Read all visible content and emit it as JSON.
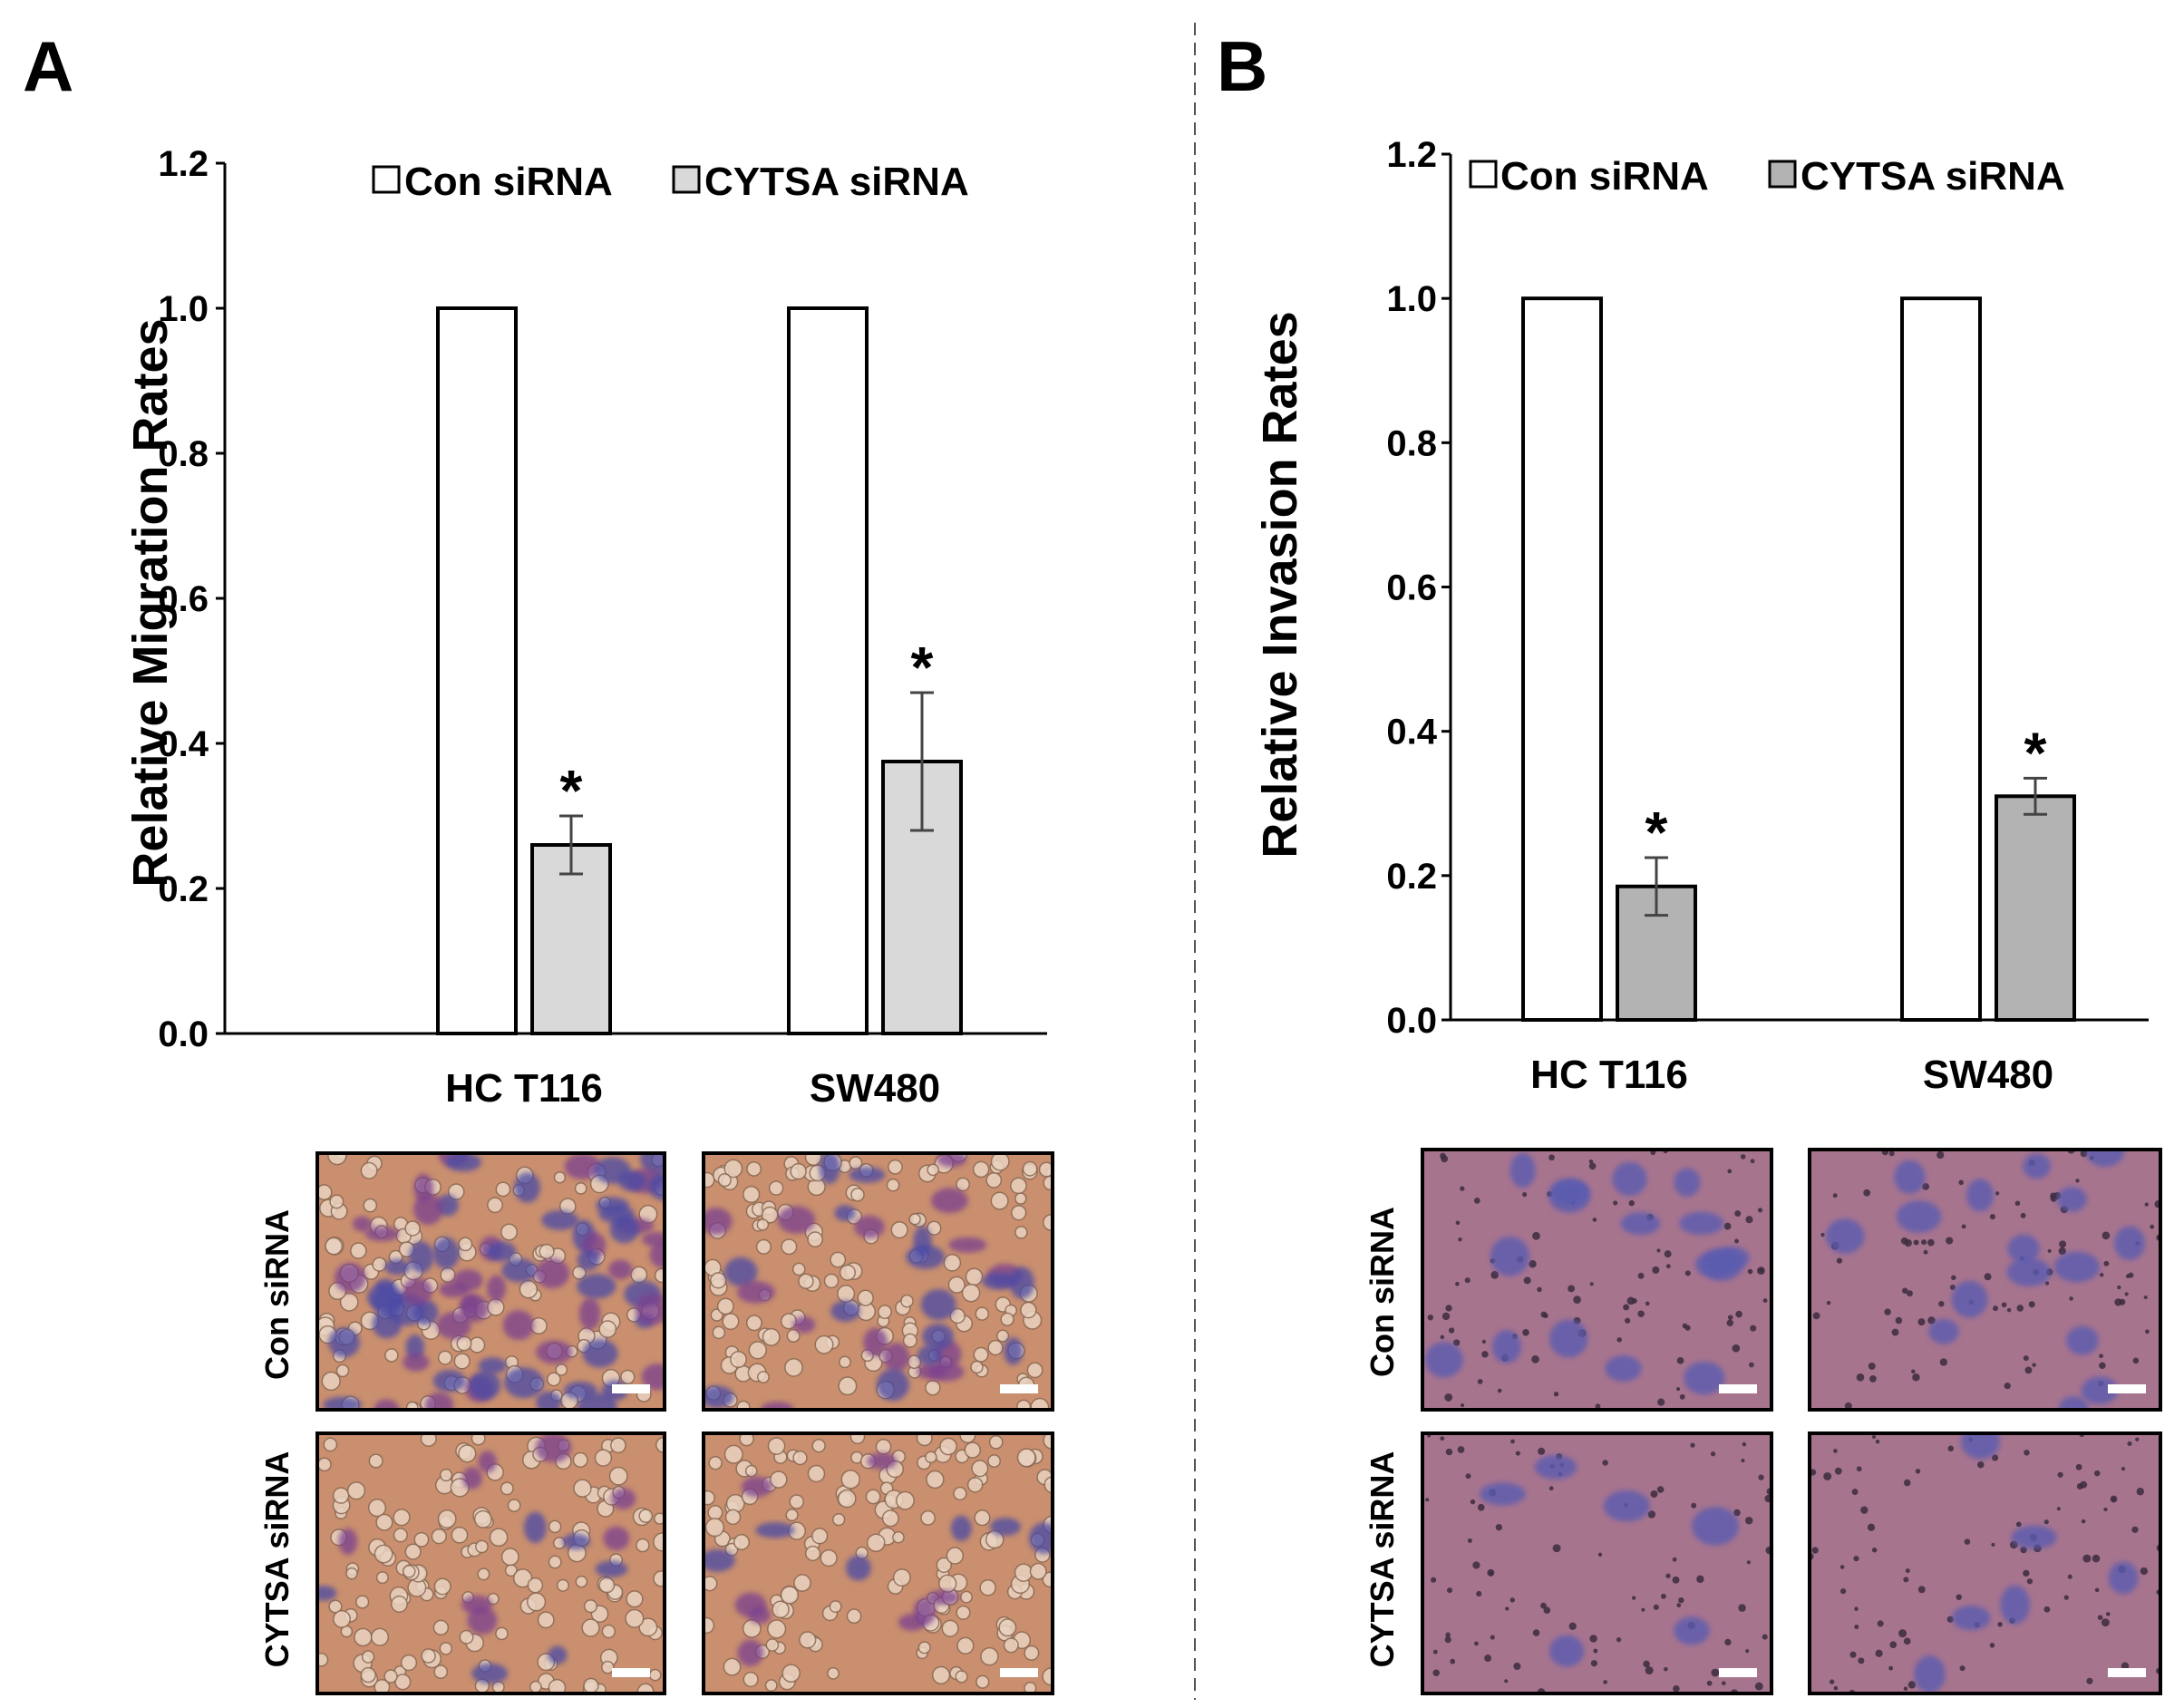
{
  "panels": {
    "a": {
      "letter": "A",
      "chart_data": {
        "type": "bar",
        "categories": [
          "HC T116",
          "SW480"
        ],
        "series": [
          {
            "name": "Con siRNA",
            "values": [
              1.0,
              1.0
            ],
            "errors": [
              0,
              0
            ],
            "significance": [
              "",
              ""
            ]
          },
          {
            "name": "CYTSA siRNA",
            "values": [
              0.26,
              0.375
            ],
            "errors": [
              0.04,
              0.095
            ],
            "significance": [
              "*",
              "*"
            ]
          }
        ],
        "title": "",
        "xlabel": "",
        "ylabel": "Relative Migration Rates",
        "ylim": [
          0,
          1.2
        ],
        "yticks": [
          "0.0",
          "0.2",
          "0.4",
          "0.6",
          "0.8",
          "1.0",
          "1.2"
        ],
        "legend": "top",
        "grid": false,
        "colors": [
          "#ffffff",
          "#d9d9d9"
        ]
      },
      "micrographs": {
        "row_labels": [
          "Con siRNA",
          "CYTSA siRNA"
        ],
        "stain": "crystal violet, migration",
        "bg_color": "#c98f6e",
        "cell_color": "#4a4aa6"
      }
    },
    "b": {
      "letter": "B",
      "chart_data": {
        "type": "bar",
        "categories": [
          "HC T116",
          "SW480"
        ],
        "series": [
          {
            "name": "Con siRNA",
            "values": [
              1.0,
              1.0
            ],
            "errors": [
              0,
              0
            ],
            "significance": [
              "",
              ""
            ]
          },
          {
            "name": "CYTSA siRNA",
            "values": [
              0.185,
              0.31
            ],
            "errors": [
              0.04,
              0.025
            ],
            "significance": [
              "*",
              "*"
            ]
          }
        ],
        "title": "",
        "xlabel": "",
        "ylabel": "Relative Invasion Rates",
        "ylim": [
          0,
          1.2
        ],
        "yticks": [
          "0.0",
          "0.2",
          "0.4",
          "0.6",
          "0.8",
          "1.0",
          "1.2"
        ],
        "legend": "top",
        "grid": false,
        "colors": [
          "#ffffff",
          "#b3b3b3"
        ]
      },
      "micrographs": {
        "row_labels": [
          "Con siRNA",
          "CYTSA siRNA"
        ],
        "stain": "crystal violet, invasion",
        "bg_color": "#a7748e",
        "cell_color": "#5a5cb0"
      }
    }
  }
}
